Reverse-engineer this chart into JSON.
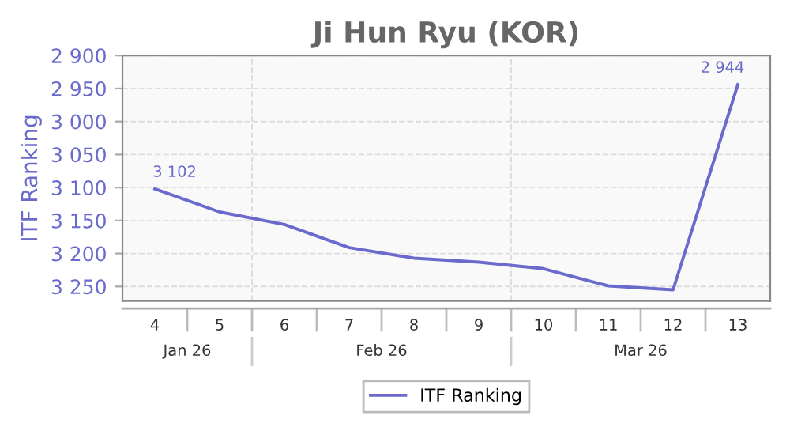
{
  "chart_data": {
    "type": "line",
    "title": "Ji Hun Ryu (KOR)",
    "ylabel": "ITF Ranking",
    "categories": [
      "4",
      "5",
      "6",
      "7",
      "8",
      "9",
      "10",
      "11",
      "12",
      "13"
    ],
    "series": [
      {
        "name": "ITF Ranking",
        "color": "#6a6acd",
        "values": [
          3102,
          3137,
          3156,
          3191,
          3207,
          3213,
          3223,
          3249,
          3255,
          2944
        ],
        "value_labels": [
          "3 102",
          null,
          null,
          null,
          null,
          null,
          null,
          null,
          null,
          "2 944"
        ]
      }
    ],
    "ylim": [
      3272,
      2900
    ],
    "yticks": [
      {
        "value": 2900,
        "label": "2 900"
      },
      {
        "value": 2950,
        "label": "2 950"
      },
      {
        "value": 3000,
        "label": "3 000"
      },
      {
        "value": 3050,
        "label": "3 050"
      },
      {
        "value": 3100,
        "label": "3 100"
      },
      {
        "value": 3150,
        "label": "3 150"
      },
      {
        "value": 3200,
        "label": "3 200"
      },
      {
        "value": 3250,
        "label": "3 250"
      }
    ],
    "annotations": [
      "Jan 26",
      "Feb 26",
      "Mar 26"
    ],
    "grid": "y",
    "legend": "bottom",
    "marker": "none",
    "line_style": "solid"
  }
}
